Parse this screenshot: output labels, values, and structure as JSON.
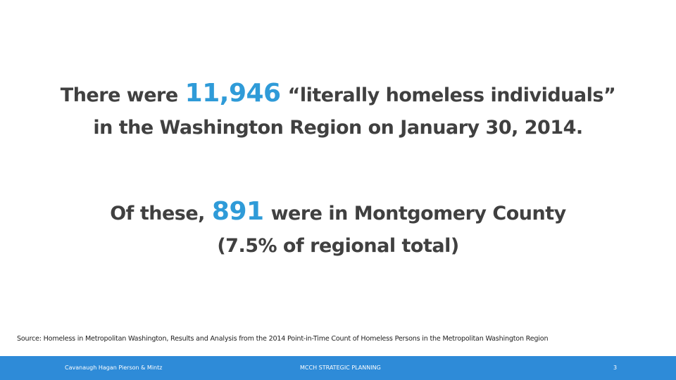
{
  "statement1": {
    "prefix": "There were",
    "number": "11,946",
    "suffix": "“literally homeless individuals”",
    "line2": "in the Washington Region on January 30, 2014."
  },
  "statement2": {
    "prefix": "Of these,",
    "number": "891",
    "suffix": "were in Montgomery County",
    "line2": "(7.5% of regional total)"
  },
  "source": "Source: Homeless in Metropolitan Washington, Results and Analysis from the 2014 Point-in-Time Count of Homeless Persons in the Metropolitan Washington Region",
  "footer": {
    "left": "Cavanaugh Hagan Pierson & Mintz",
    "center": "MCCH STRATEGIC PLANNING",
    "page": "3"
  }
}
